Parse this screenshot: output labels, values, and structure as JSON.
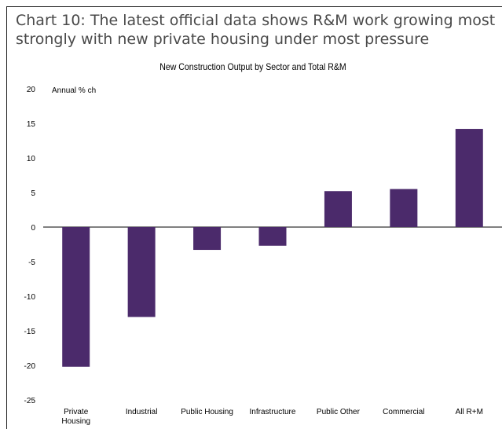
{
  "heading": "Chart 10: The latest official data shows R&M work growing most strongly with new private housing under most pressure",
  "colors": {
    "bar": "#4b2a6b",
    "text": "#4a4a4a"
  },
  "chart_data": {
    "type": "bar",
    "title": "New Construction Output by Sector and Total R&M",
    "ylabel": "Annual % ch",
    "xlabel": "",
    "ylim": [
      -25,
      20
    ],
    "yticks": [
      20,
      15,
      10,
      5,
      0,
      -5,
      -10,
      -15,
      -20,
      -25
    ],
    "grid": false,
    "categories": [
      "Private Housing",
      "Industrial",
      "Public Housing",
      "Infrastructure",
      "Public Other",
      "Commercial",
      "All R+M"
    ],
    "values": [
      -20.2,
      -13.0,
      -3.3,
      -2.7,
      5.2,
      5.5,
      14.2
    ]
  }
}
